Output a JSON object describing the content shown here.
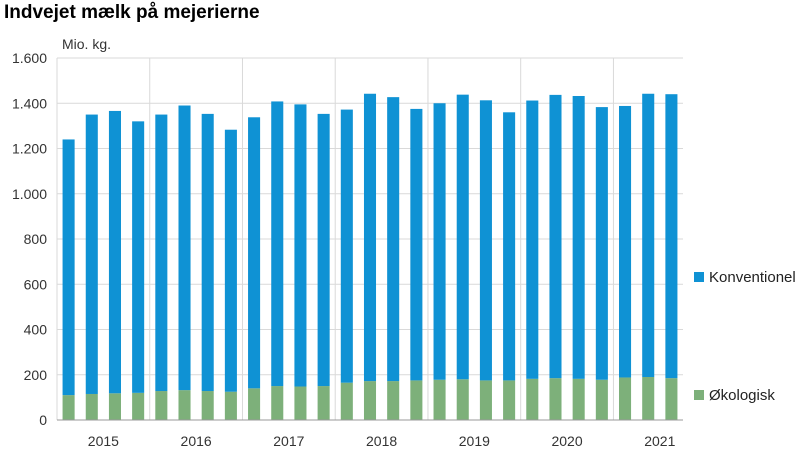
{
  "chart_data": {
    "type": "bar",
    "stacked": true,
    "title": "Indvejet mælk på mejerierne",
    "ylabel": "Mio. kg.",
    "xlabel": "",
    "ylim": [
      0,
      1600
    ],
    "yticks": [
      0,
      200,
      400,
      600,
      800,
      1000,
      1200,
      1400,
      1600
    ],
    "ytick_labels": [
      "0",
      "200",
      "400",
      "600",
      "800",
      "1.000",
      "1.200",
      "1.400",
      "1.600"
    ],
    "periods_per_group": 4,
    "groups": [
      "2015",
      "2016",
      "2017",
      "2018",
      "2019",
      "2020",
      "2021"
    ],
    "series": [
      {
        "name": "Økologisk",
        "color": "#7db07a",
        "values": [
          110,
          115,
          118,
          120,
          128,
          132,
          128,
          125,
          140,
          150,
          148,
          150,
          165,
          172,
          172,
          175,
          178,
          180,
          175,
          175,
          182,
          185,
          182,
          178,
          188,
          190,
          185
        ]
      },
      {
        "name": "Konventionel",
        "color": "#0f92d4",
        "values": [
          1130,
          1235,
          1248,
          1200,
          1222,
          1258,
          1225,
          1158,
          1198,
          1258,
          1247,
          1203,
          1207,
          1270,
          1255,
          1200,
          1222,
          1258,
          1238,
          1185,
          1230,
          1252,
          1250,
          1205,
          1200,
          1252,
          1255
        ]
      }
    ],
    "legend": [
      "Konventionel",
      "Økologisk"
    ],
    "legend_position": "right",
    "grid": true
  }
}
